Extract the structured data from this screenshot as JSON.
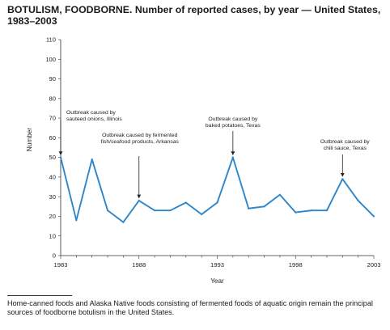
{
  "title": {
    "bold": "BOTULISM, FOODBORNE.",
    "rest": "Number of reported cases, by year — United States, 1983–2003"
  },
  "chart_data": {
    "type": "line",
    "title": "BOTULISM, FOODBORNE. Number of reported cases, by year — United States, 1983–2003",
    "xlabel": "Year",
    "ylabel": "Number",
    "xlim": [
      1983,
      2003
    ],
    "ylim": [
      0,
      110
    ],
    "x_ticks": [
      1983,
      1988,
      1993,
      1998,
      2003
    ],
    "y_ticks": [
      0,
      10,
      20,
      30,
      40,
      50,
      60,
      70,
      80,
      90,
      100,
      110
    ],
    "grid": false,
    "line_color": "#2e86c8",
    "x": [
      1983,
      1984,
      1985,
      1986,
      1987,
      1988,
      1989,
      1990,
      1991,
      1992,
      1993,
      1994,
      1995,
      1996,
      1997,
      1998,
      1999,
      2000,
      2001,
      2002,
      2003
    ],
    "series": [
      {
        "values": [
          50,
          18,
          49,
          23,
          17,
          28,
          23,
          23,
          27,
          21,
          27,
          50,
          24,
          25,
          31,
          22,
          23,
          23,
          39,
          28,
          20
        ]
      }
    ],
    "annotations": [
      {
        "lines": [
          "Outbreak caused by",
          "sauteed onions, Illinois"
        ],
        "x": 1983,
        "y": 50
      },
      {
        "lines": [
          "Outbreak caused by fermented",
          "fish/seafood products, Arkansas"
        ],
        "x": 1988,
        "y": 28
      },
      {
        "lines": [
          "Outbreak caused by",
          "baked potatoes, Texas"
        ],
        "x": 1994,
        "y": 50
      },
      {
        "lines": [
          "Outbreak caused by",
          "chili sauce, Texas"
        ],
        "x": 2001,
        "y": 39
      }
    ]
  },
  "footnote": "Home-canned foods and Alaska Native foods consisting of fermented foods of aquatic origin remain the principal sources of foodborne botulism in the United States."
}
